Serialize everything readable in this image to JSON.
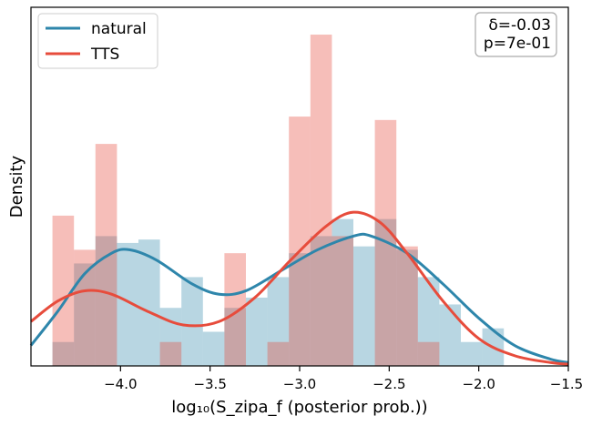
{
  "chart_data": {
    "type": "histogram+kde",
    "xlabel": "log₁₀(S_zipa_f (posterior prob.))",
    "ylabel": "Density",
    "xlim": [
      -4.5,
      -1.5
    ],
    "ylim": [
      0,
      1.05
    ],
    "xticks": [
      -4.0,
      -3.5,
      -3.0,
      -2.5,
      -2.0,
      -1.5
    ],
    "xtick_labels": [
      "−4.0",
      "−3.5",
      "−3.0",
      "−2.5",
      "−2.0",
      "−1.5"
    ],
    "bin_edges": [
      -4.38,
      -4.26,
      -4.14,
      -4.02,
      -3.9,
      -3.78,
      -3.66,
      -3.54,
      -3.42,
      -3.3,
      -3.18,
      -3.06,
      -2.94,
      -2.82,
      -2.7,
      -2.58,
      -2.46,
      -2.34,
      -2.22,
      -2.1,
      -1.98,
      -1.86
    ],
    "series": [
      {
        "name": "natural",
        "color": "#2e86ab",
        "hist_values": [
          0.07,
          0.3,
          0.38,
          0.36,
          0.37,
          0.17,
          0.26,
          0.1,
          0.17,
          0.2,
          0.26,
          0.33,
          0.38,
          0.43,
          0.35,
          0.43,
          0.34,
          0.26,
          0.18,
          0.07,
          0.11
        ],
        "kde": [
          [
            -4.5,
            0.06
          ],
          [
            -4.35,
            0.16
          ],
          [
            -4.2,
            0.27
          ],
          [
            -4.05,
            0.33
          ],
          [
            -3.95,
            0.34
          ],
          [
            -3.8,
            0.31
          ],
          [
            -3.6,
            0.24
          ],
          [
            -3.45,
            0.21
          ],
          [
            -3.3,
            0.22
          ],
          [
            -3.1,
            0.28
          ],
          [
            -2.9,
            0.34
          ],
          [
            -2.7,
            0.38
          ],
          [
            -2.6,
            0.38
          ],
          [
            -2.4,
            0.33
          ],
          [
            -2.2,
            0.24
          ],
          [
            -2.0,
            0.14
          ],
          [
            -1.8,
            0.06
          ],
          [
            -1.6,
            0.02
          ],
          [
            -1.5,
            0.01
          ]
        ]
      },
      {
        "name": "TTS",
        "color": "#e74c3c",
        "hist_values": [
          0.44,
          0.34,
          0.65,
          0.0,
          0.0,
          0.07,
          0.0,
          0.0,
          0.33,
          0.0,
          0.07,
          0.73,
          0.97,
          0.38,
          0.0,
          0.72,
          0.35,
          0.07,
          0.0,
          0.0,
          0.0
        ],
        "kde": [
          [
            -4.5,
            0.13
          ],
          [
            -4.35,
            0.19
          ],
          [
            -4.2,
            0.22
          ],
          [
            -4.05,
            0.21
          ],
          [
            -3.85,
            0.16
          ],
          [
            -3.65,
            0.12
          ],
          [
            -3.45,
            0.13
          ],
          [
            -3.25,
            0.2
          ],
          [
            -3.05,
            0.31
          ],
          [
            -2.85,
            0.41
          ],
          [
            -2.7,
            0.45
          ],
          [
            -2.55,
            0.42
          ],
          [
            -2.4,
            0.33
          ],
          [
            -2.2,
            0.19
          ],
          [
            -2.0,
            0.08
          ],
          [
            -1.8,
            0.03
          ],
          [
            -1.6,
            0.01
          ],
          [
            -1.5,
            0.005
          ]
        ]
      }
    ],
    "legend": {
      "position": "top-left",
      "entries": [
        "natural",
        "TTS"
      ]
    },
    "annotation": {
      "delta_text": "δ=-0.03",
      "p_text": "p=7e-01",
      "position": "top-right"
    }
  }
}
